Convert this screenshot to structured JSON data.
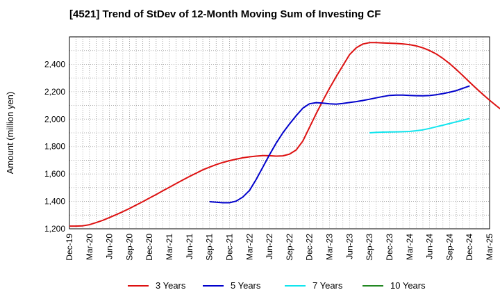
{
  "chart_data": {
    "type": "line",
    "title": "[4521]  Trend of StDev of 12-Month Moving Sum of Investing CF",
    "ylabel": "Amount (million yen)",
    "xlabel": "",
    "ylim": [
      1200,
      2600
    ],
    "yticks": [
      1200,
      1400,
      1600,
      1800,
      2000,
      2200,
      2400
    ],
    "ytick_labels": [
      "1,200",
      "1,400",
      "1,600",
      "1,800",
      "2,000",
      "2,200",
      "2,400"
    ],
    "xlim": [
      "2019-12",
      "2025-03"
    ],
    "xticks": [
      "Dec-19",
      "Mar-20",
      "Jun-20",
      "Sep-20",
      "Dec-20",
      "Mar-21",
      "Jun-21",
      "Sep-21",
      "Dec-21",
      "Mar-22",
      "Jun-22",
      "Sep-22",
      "Dec-22",
      "Mar-23",
      "Jun-23",
      "Sep-23",
      "Dec-23",
      "Mar-24",
      "Jun-24",
      "Sep-24",
      "Dec-24",
      "Mar-25"
    ],
    "grid": true,
    "legend_position": "bottom",
    "series": [
      {
        "name": "3 Years",
        "color": "#dd1111",
        "points": [
          [
            "2019-12",
            1220
          ],
          [
            "2020-01",
            1220
          ],
          [
            "2020-02",
            1222
          ],
          [
            "2020-03",
            1230
          ],
          [
            "2020-04",
            1245
          ],
          [
            "2020-05",
            1262
          ],
          [
            "2020-06",
            1282
          ],
          [
            "2020-07",
            1303
          ],
          [
            "2020-08",
            1325
          ],
          [
            "2020-09",
            1348
          ],
          [
            "2020-10",
            1373
          ],
          [
            "2020-11",
            1398
          ],
          [
            "2020-12",
            1424
          ],
          [
            "2021-01",
            1450
          ],
          [
            "2021-02",
            1477
          ],
          [
            "2021-03",
            1503
          ],
          [
            "2021-04",
            1530
          ],
          [
            "2021-05",
            1556
          ],
          [
            "2021-06",
            1582
          ],
          [
            "2021-07",
            1606
          ],
          [
            "2021-08",
            1630
          ],
          [
            "2021-09",
            1650
          ],
          [
            "2021-10",
            1668
          ],
          [
            "2021-11",
            1684
          ],
          [
            "2021-12",
            1697
          ],
          [
            "2022-01",
            1708
          ],
          [
            "2022-02",
            1718
          ],
          [
            "2022-03",
            1725
          ],
          [
            "2022-04",
            1730
          ],
          [
            "2022-05",
            1734
          ],
          [
            "2022-06",
            1733
          ],
          [
            "2022-07",
            1730
          ],
          [
            "2022-08",
            1732
          ],
          [
            "2022-09",
            1745
          ],
          [
            "2022-10",
            1775
          ],
          [
            "2022-11",
            1840
          ],
          [
            "2022-12",
            1940
          ],
          [
            "2023-01",
            2040
          ],
          [
            "2023-02",
            2135
          ],
          [
            "2023-03",
            2225
          ],
          [
            "2023-04",
            2310
          ],
          [
            "2023-05",
            2390
          ],
          [
            "2023-06",
            2470
          ],
          [
            "2023-07",
            2520
          ],
          [
            "2023-08",
            2548
          ],
          [
            "2023-09",
            2558
          ],
          [
            "2023-10",
            2558
          ],
          [
            "2023-11",
            2556
          ],
          [
            "2023-12",
            2554
          ],
          [
            "2024-01",
            2552
          ],
          [
            "2024-02",
            2549
          ],
          [
            "2024-03",
            2543
          ],
          [
            "2024-04",
            2534
          ],
          [
            "2024-05",
            2520
          ],
          [
            "2024-06",
            2500
          ],
          [
            "2024-07",
            2475
          ],
          [
            "2024-08",
            2443
          ],
          [
            "2024-09",
            2405
          ],
          [
            "2024-10",
            2362
          ],
          [
            "2024-11",
            2317
          ],
          [
            "2024-12",
            2270
          ],
          [
            "2025-01",
            2224
          ],
          [
            "2025-02",
            2180
          ],
          [
            "2025-03",
            2138
          ],
          [
            "2025-04",
            2098
          ],
          [
            "2025-05",
            2060
          ],
          [
            "2025-06",
            2030
          ],
          [
            "2025-07",
            2005
          ]
        ]
      },
      {
        "name": "5 Years",
        "color": "#0000cc",
        "points": [
          [
            "2021-09",
            1398
          ],
          [
            "2021-10",
            1394
          ],
          [
            "2021-11",
            1390
          ],
          [
            "2021-12",
            1390
          ],
          [
            "2022-01",
            1402
          ],
          [
            "2022-02",
            1432
          ],
          [
            "2022-03",
            1480
          ],
          [
            "2022-04",
            1560
          ],
          [
            "2022-05",
            1650
          ],
          [
            "2022-06",
            1740
          ],
          [
            "2022-07",
            1825
          ],
          [
            "2022-08",
            1900
          ],
          [
            "2022-09",
            1965
          ],
          [
            "2022-10",
            2025
          ],
          [
            "2022-11",
            2080
          ],
          [
            "2022-12",
            2112
          ],
          [
            "2023-01",
            2120
          ],
          [
            "2023-02",
            2117
          ],
          [
            "2023-03",
            2112
          ],
          [
            "2023-04",
            2109
          ],
          [
            "2023-05",
            2114
          ],
          [
            "2023-06",
            2121
          ],
          [
            "2023-07",
            2128
          ],
          [
            "2023-08",
            2136
          ],
          [
            "2023-09",
            2145
          ],
          [
            "2023-10",
            2155
          ],
          [
            "2023-11",
            2165
          ],
          [
            "2023-12",
            2173
          ],
          [
            "2024-01",
            2175
          ],
          [
            "2024-02",
            2175
          ],
          [
            "2024-03",
            2173
          ],
          [
            "2024-04",
            2171
          ],
          [
            "2024-05",
            2170
          ],
          [
            "2024-06",
            2172
          ],
          [
            "2024-07",
            2178
          ],
          [
            "2024-08",
            2186
          ],
          [
            "2024-09",
            2196
          ],
          [
            "2024-10",
            2208
          ],
          [
            "2024-11",
            2225
          ],
          [
            "2024-12",
            2242
          ]
        ]
      },
      {
        "name": "7 Years",
        "color": "#11e5ee",
        "points": [
          [
            "2023-09",
            1900
          ],
          [
            "2023-10",
            1903
          ],
          [
            "2023-11",
            1905
          ],
          [
            "2023-12",
            1906
          ],
          [
            "2024-01",
            1907
          ],
          [
            "2024-02",
            1908
          ],
          [
            "2024-03",
            1910
          ],
          [
            "2024-04",
            1915
          ],
          [
            "2024-05",
            1922
          ],
          [
            "2024-06",
            1932
          ],
          [
            "2024-07",
            1944
          ],
          [
            "2024-08",
            1956
          ],
          [
            "2024-09",
            1968
          ],
          [
            "2024-10",
            1980
          ],
          [
            "2024-11",
            1992
          ],
          [
            "2024-12",
            2005
          ]
        ]
      },
      {
        "name": "10 Years",
        "color": "#228822",
        "points": []
      }
    ]
  }
}
